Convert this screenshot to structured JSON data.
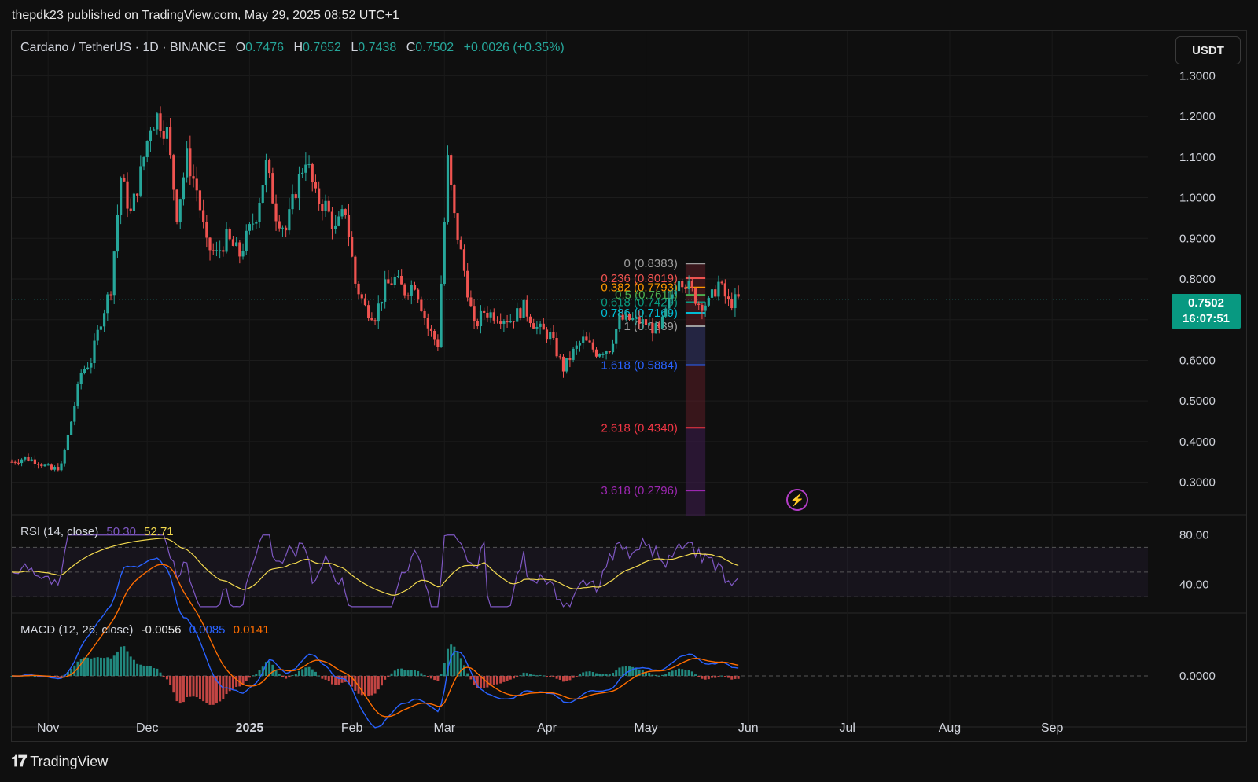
{
  "publisher_line": "thepdk23 published on TradingView.com, May 29, 2025 08:52 UTC+1",
  "legend": {
    "symbol": "Cardano / TetherUS · 1D · BINANCE",
    "open_label": "O",
    "open": "0.7476",
    "high_label": "H",
    "high": "0.7652",
    "low_label": "L",
    "low": "0.7438",
    "close_label": "C",
    "close": "0.7502",
    "change": "+0.0026 (+0.35%)"
  },
  "currency_button": "USDT",
  "price_tag": {
    "price": "0.7502",
    "countdown": "16:07:51"
  },
  "rsi": {
    "title": "RSI (14, close)",
    "value1": "50.30",
    "value2": "52.71",
    "ticks": [
      "80.00",
      "40.00"
    ]
  },
  "macd": {
    "title": "MACD (12, 26, close)",
    "histogram": "-0.0056",
    "macd": "0.0085",
    "signal": "0.0141",
    "ticks": [
      "0.0000"
    ]
  },
  "brand": "TradingView",
  "colors": {
    "up": "#26a69a",
    "down": "#ef5350",
    "rsi": "#7e57c2",
    "rsi_ma": "#f2d94e",
    "macd": "#2962ff",
    "signal": "#ff6d00",
    "accent": "#089981"
  },
  "chart_data": {
    "type": "candlestick",
    "price_ticks": [
      "1.3000",
      "1.2000",
      "1.1000",
      "1.0000",
      "0.9000",
      "0.8000",
      "0.7000",
      "0.6000",
      "0.5000",
      "0.4000",
      "0.3000"
    ],
    "price_range": [
      0.22,
      1.38
    ],
    "x_labels": [
      "Nov",
      "Dec",
      "2025",
      "Feb",
      "Mar",
      "Apr",
      "May",
      "Jun",
      "Jul",
      "Aug",
      "Sep"
    ],
    "last_price": 0.7502,
    "fib_levels": [
      {
        "label": "0 (0.8383)",
        "value": 0.8383,
        "color": "#9e9e9e"
      },
      {
        "label": "0.236 (0.8019)",
        "value": 0.8019,
        "color": "#ef5350"
      },
      {
        "label": "0.382 (0.7793)",
        "value": 0.7793,
        "color": "#ff9800"
      },
      {
        "label": "0.5 (0.7611)",
        "value": 0.7611,
        "color": "#4caf50"
      },
      {
        "label": "0.618 (0.7429)",
        "value": 0.7429,
        "color": "#089981"
      },
      {
        "label": "0.786 (0.7169)",
        "value": 0.7169,
        "color": "#00bcd4"
      },
      {
        "label": "1 (0.6839)",
        "value": 0.6839,
        "color": "#9e9e9e"
      },
      {
        "label": "1.618 (0.5884)",
        "value": 0.5884,
        "color": "#2962ff"
      },
      {
        "label": "2.618 (0.4340)",
        "value": 0.434,
        "color": "#f23645"
      },
      {
        "label": "3.618 (0.2796)",
        "value": 0.2796,
        "color": "#9c27b0"
      }
    ],
    "close_path": [
      [
        "2024-10-21",
        0.35
      ],
      [
        "2024-10-25",
        0.36
      ],
      [
        "2024-10-29",
        0.35
      ],
      [
        "2024-11-02",
        0.33
      ],
      [
        "2024-11-05",
        0.34
      ],
      [
        "2024-11-08",
        0.45
      ],
      [
        "2024-11-11",
        0.57
      ],
      [
        "2024-11-14",
        0.6
      ],
      [
        "2024-11-17",
        0.7
      ],
      [
        "2024-11-20",
        0.78
      ],
      [
        "2024-11-23",
        1.05
      ],
      [
        "2024-11-26",
        0.96
      ],
      [
        "2024-11-29",
        1.06
      ],
      [
        "2024-12-02",
        1.18
      ],
      [
        "2024-12-04",
        1.2
      ],
      [
        "2024-12-07",
        1.16
      ],
      [
        "2024-12-10",
        0.96
      ],
      [
        "2024-12-13",
        1.1
      ],
      [
        "2024-12-16",
        1.02
      ],
      [
        "2024-12-19",
        0.88
      ],
      [
        "2024-12-22",
        0.86
      ],
      [
        "2024-12-25",
        0.9
      ],
      [
        "2024-12-29",
        0.86
      ],
      [
        "2025-01-03",
        0.96
      ],
      [
        "2025-01-06",
        1.08
      ],
      [
        "2025-01-09",
        0.96
      ],
      [
        "2025-01-12",
        0.92
      ],
      [
        "2025-01-15",
        1.02
      ],
      [
        "2025-01-18",
        1.1
      ],
      [
        "2025-01-21",
        1.0
      ],
      [
        "2025-01-24",
        0.98
      ],
      [
        "2025-01-27",
        0.92
      ],
      [
        "2025-01-30",
        0.97
      ],
      [
        "2025-02-02",
        0.79
      ],
      [
        "2025-02-05",
        0.73
      ],
      [
        "2025-02-08",
        0.71
      ],
      [
        "2025-02-11",
        0.78
      ],
      [
        "2025-02-14",
        0.8
      ],
      [
        "2025-02-17",
        0.77
      ],
      [
        "2025-02-20",
        0.79
      ],
      [
        "2025-02-24",
        0.68
      ],
      [
        "2025-02-27",
        0.64
      ],
      [
        "2025-03-02",
        1.09
      ],
      [
        "2025-03-04",
        0.95
      ],
      [
        "2025-03-07",
        0.82
      ],
      [
        "2025-03-10",
        0.68
      ],
      [
        "2025-03-13",
        0.72
      ],
      [
        "2025-03-17",
        0.71
      ],
      [
        "2025-03-21",
        0.7
      ],
      [
        "2025-03-25",
        0.73
      ],
      [
        "2025-03-29",
        0.68
      ],
      [
        "2025-04-02",
        0.66
      ],
      [
        "2025-04-06",
        0.58
      ],
      [
        "2025-04-09",
        0.62
      ],
      [
        "2025-04-12",
        0.65
      ],
      [
        "2025-04-16",
        0.62
      ],
      [
        "2025-04-20",
        0.63
      ],
      [
        "2025-04-23",
        0.7
      ],
      [
        "2025-04-27",
        0.7
      ],
      [
        "2025-05-01",
        0.69
      ],
      [
        "2025-05-05",
        0.67
      ],
      [
        "2025-05-08",
        0.74
      ],
      [
        "2025-05-11",
        0.81
      ],
      [
        "2025-05-14",
        0.78
      ],
      [
        "2025-05-17",
        0.74
      ],
      [
        "2025-05-20",
        0.74
      ],
      [
        "2025-05-23",
        0.79
      ],
      [
        "2025-05-26",
        0.74
      ],
      [
        "2025-05-29",
        0.75
      ]
    ]
  }
}
